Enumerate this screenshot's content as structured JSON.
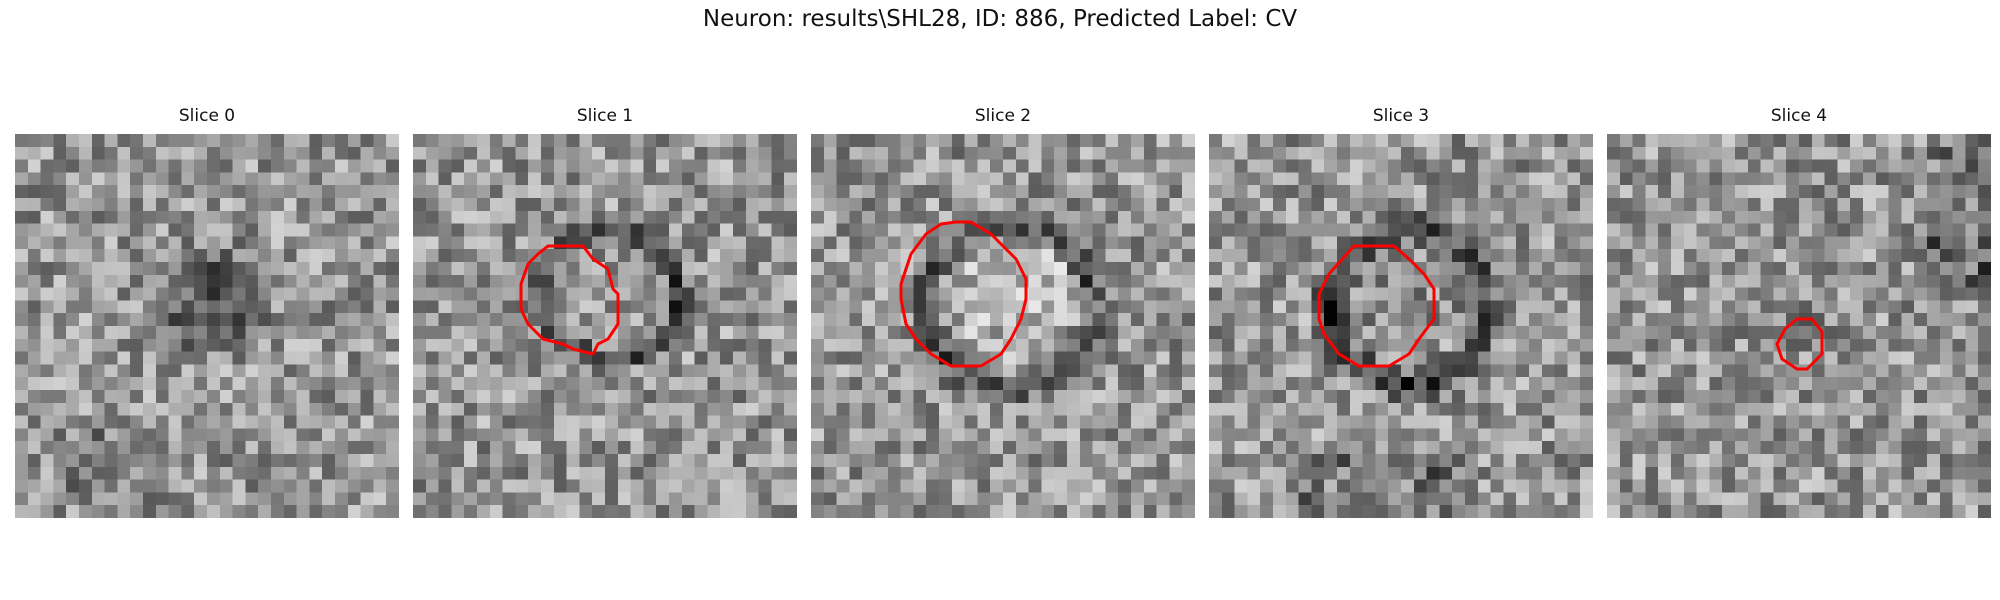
{
  "figure": {
    "suptitle": "Neuron: results\\SHL28, ID: 886, Predicted Label: CV",
    "outline_color": "#ff0000",
    "colormap": "gray",
    "panels": [
      {
        "title": "Slice 0",
        "has_outline": false,
        "pattern": "dark-blob-center"
      },
      {
        "title": "Slice 1",
        "has_outline": true,
        "pattern": "ring"
      },
      {
        "title": "Slice 2",
        "has_outline": true,
        "pattern": "ring-large"
      },
      {
        "title": "Slice 3",
        "has_outline": true,
        "pattern": "ring-dark"
      },
      {
        "title": "Slice 4",
        "has_outline": true,
        "pattern": "small-dark-spot"
      }
    ]
  }
}
